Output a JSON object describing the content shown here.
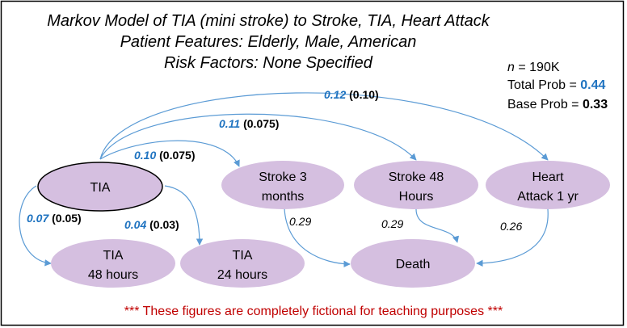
{
  "title": {
    "line1": "Markov Model of TIA (mini stroke) to Stroke, TIA, Heart Attack",
    "line2": "Patient Features: Elderly, Male, American",
    "line3": "Risk Factors: None Specified"
  },
  "stats": {
    "n_label": "n",
    "n_value": " = 190K",
    "total_label": "Total Prob = ",
    "total_value": "0.44",
    "base_label": "Base Prob = ",
    "base_value": "0.33"
  },
  "nodes": {
    "tia": {
      "line1": "TIA"
    },
    "stroke3": {
      "line1": "Stroke 3",
      "line2": "months"
    },
    "stroke48": {
      "line1": "Stroke 48",
      "line2": "Hours"
    },
    "heart": {
      "line1": "Heart",
      "line2": "Attack 1 yr"
    },
    "tia48": {
      "line1": "TIA",
      "line2": "48 hours"
    },
    "tia24": {
      "line1": "TIA",
      "line2": "24 hours"
    },
    "death": {
      "line1": "Death"
    }
  },
  "edges": {
    "tia_heart": {
      "prob": "0.12",
      "base": " (0.10)"
    },
    "tia_stroke48": {
      "prob": "0.11",
      "base": " (0.075)"
    },
    "tia_stroke3": {
      "prob": "0.10",
      "base": " (0.075)"
    },
    "tia_tia48": {
      "prob": "0.07",
      "base": " (0.05)"
    },
    "tia_tia24": {
      "prob": "0.04",
      "base": " (0.03)"
    },
    "stroke3_death": {
      "prob": "0.29"
    },
    "stroke48_death": {
      "prob": "0.29"
    },
    "heart_death": {
      "prob": "0.26"
    }
  },
  "footer": "*** These figures are completely fictional for teaching purposes ***",
  "colors": {
    "node": "#d5bfe0",
    "edge": "#5b9bd5",
    "prob": "#1f73c0",
    "footer": "#c00000"
  }
}
